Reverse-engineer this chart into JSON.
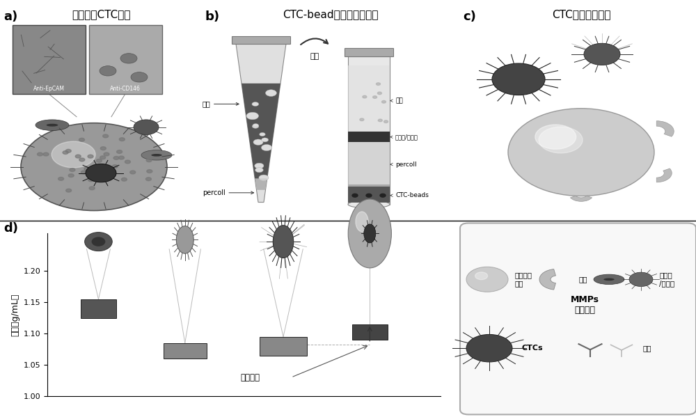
{
  "fig_width": 10.0,
  "fig_height": 5.99,
  "bg_color": "#ffffff",
  "panel_labels": [
    "a)",
    "b)",
    "c)",
    "d)"
  ],
  "panel_label_fontsize": 13,
  "panel_label_color": "#000000",
  "panel_a_title": "双抗加强CTC捕获",
  "panel_b_title": "CTC-bead从血细胞中分离",
  "panel_c_title": "CTC从微球上分离",
  "title_fontsize": 11,
  "ylabel": "密度（g/mL）",
  "ylabel_fontsize": 9,
  "yticks": [
    1.0,
    1.05,
    1.1,
    1.15,
    1.2
  ],
  "ylim": [
    1.0,
    1.26
  ],
  "density_zoom_label": "密度放大",
  "legend_sio2": "二氧化砀\n微球",
  "legend_gelatin": "明胶",
  "legend_rbc": "红细胞\n/白细胞",
  "legend_ctcs": "CTCs",
  "legend_antibody": "抗体",
  "label_blood": "血样",
  "label_percoll": "percoll",
  "label_centrifuge": "离心",
  "label_serum": "血清",
  "label_wbc_rbc": "白细胞/红细胞",
  "label_percoll2": "percoll",
  "label_ctcbeads": "CTC-beads",
  "label_mmps": "MMPs",
  "label_degrade": "降解明胶",
  "label_antiepcam": "Anti-EpCAM",
  "label_anticd146": "Anti-CD146"
}
